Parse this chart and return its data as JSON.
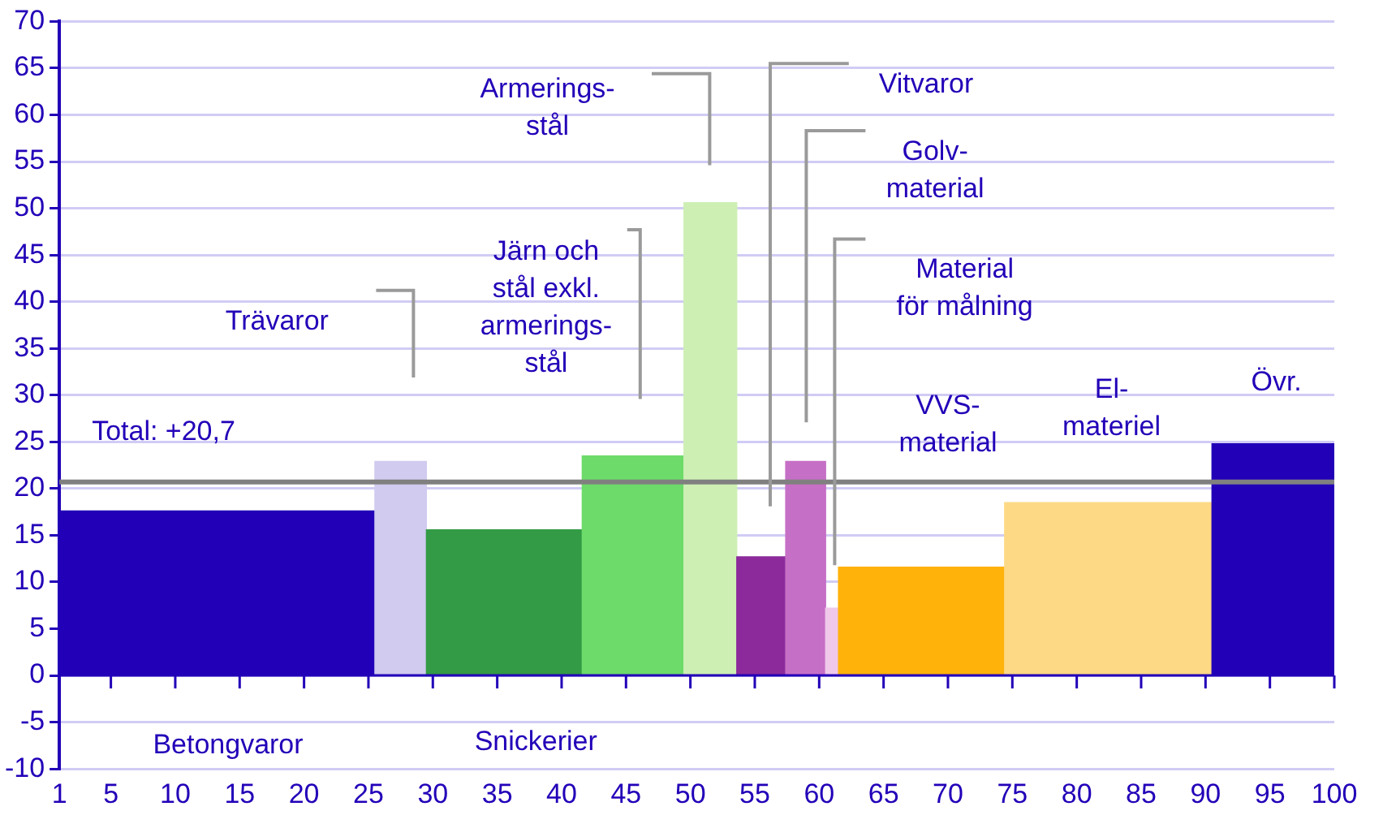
{
  "chart_data": {
    "type": "histogram",
    "bins": [
      1,
      25.5,
      29.5,
      41.6,
      49.5,
      53.6,
      57.4,
      60.5,
      61.5,
      74.4,
      90.5,
      100
    ],
    "values": [
      17.6,
      22.9,
      15.6,
      23.5,
      50.6,
      12.7,
      22.9,
      7.2,
      11.6,
      18.5,
      24.8
    ],
    "colors": [
      "#2200b8",
      "#d0cbef",
      "#339b45",
      "#6cdb6a",
      "#cdefb4",
      "#8c2a9b",
      "#c66fc6",
      "#f0c8ea",
      "#ffb20a",
      "#fdd985",
      "#2200b8"
    ],
    "xlim": [
      1,
      100
    ],
    "xticks": [
      1,
      5,
      10,
      15,
      20,
      25,
      30,
      35,
      40,
      45,
      50,
      55,
      60,
      65,
      70,
      75,
      80,
      85,
      90,
      95,
      100
    ],
    "ylim": [
      -10,
      70
    ],
    "yticks": [
      -10,
      -5,
      0,
      5,
      10,
      15,
      20,
      25,
      30,
      35,
      40,
      45,
      50,
      55,
      60,
      65,
      70
    ],
    "grid": "y",
    "ref_lines": [
      {
        "axis": "y",
        "value": 20.7,
        "label": "Total: +20,7",
        "color": "#808080"
      },
      {
        "axis": "y",
        "value": 0,
        "color": "#2200b8"
      }
    ],
    "annotations": [
      "Betongvaror",
      "Trävaror",
      "Snickerier",
      "Järn och\nstål exkl.\narmerings-\nstål",
      "Armerings-\nstål",
      "Vitvaror",
      "Golv-\nmaterial",
      "Material\nför målning",
      "VVS-\nmaterial",
      "El-\nmateriel",
      "Övr."
    ]
  }
}
